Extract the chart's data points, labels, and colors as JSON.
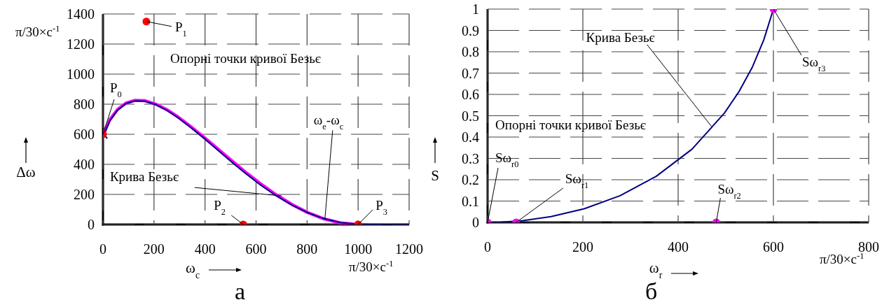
{
  "chart_data": [
    {
      "type": "line",
      "xlabel": "ω$_{c}$",
      "ylabel": "Δω",
      "xlim": [
        0,
        1200
      ],
      "xticks": [
        0,
        200,
        400,
        600,
        800,
        1000,
        1200
      ],
      "ylim": [
        0,
        1400
      ],
      "yticks": [
        0,
        200,
        400,
        600,
        800,
        1000,
        1200,
        1400
      ],
      "grid": true,
      "series": [
        {
          "type": "line",
          "color": "#ff00ff",
          "x": [
            0,
            27,
            57,
            90,
            126,
            165,
            206,
            250,
            296,
            344,
            395,
            448,
            503,
            559,
            618,
            678,
            740,
            803,
            867,
            933,
            1000
          ],
          "values": [
            600,
            697,
            765,
            807,
            826,
            823,
            801,
            764,
            713,
            651,
            581,
            506,
            427,
            348,
            271,
            199,
            134,
            79,
            37,
            10,
            0
          ]
        },
        {
          "type": "line",
          "color": "#000080",
          "x": [
            15,
            5,
            27,
            57,
            90,
            126,
            165,
            206,
            250,
            296,
            344,
            395,
            448,
            503,
            559,
            618,
            678,
            740,
            803,
            867,
            933,
            1000,
            1050,
            1200
          ],
          "values": [
            575,
            600,
            690,
            760,
            805,
            822,
            820,
            798,
            760,
            708,
            645,
            575,
            498,
            418,
            340,
            262,
            192,
            130,
            78,
            38,
            12,
            2,
            0,
            0
          ]
        },
        {
          "type": "scatter",
          "color": "#ff0000",
          "marker": "circle",
          "x": [
            0,
            170,
            550,
            1000
          ],
          "values": [
            600,
            1350,
            0,
            0
          ]
        }
      ],
      "annotations": [
        {
          "text": "P$_{0}$",
          "x": 0,
          "y": 600
        },
        {
          "text": "P$_{1}$",
          "x": 170,
          "y": 1350
        },
        {
          "text": "P$_{2}$",
          "x": 550,
          "y": 0
        },
        {
          "text": "P$_{3}$",
          "x": 1000,
          "y": 0
        },
        {
          "text": "ω$_{e}$-ω$_{c}$",
          "x": 870,
          "y": 40
        },
        {
          "text": "Крива Безьє",
          "x": 700,
          "y": 190
        },
        "Опорні точки кривої Безьє",
        "π/30×c$^{-1}$",
        "π/30×c$^{-1}$",
        "а"
      ]
    },
    {
      "type": "line",
      "xlabel": "ω$_{r}$",
      "ylabel": "S",
      "xlim": [
        0,
        800
      ],
      "xticks": [
        0,
        200,
        400,
        600,
        800
      ],
      "ylim": [
        0,
        1
      ],
      "yticks": [
        0,
        0.1,
        0.2,
        0.3,
        0.4,
        0.5,
        0.6,
        0.7,
        0.8,
        0.9,
        1
      ],
      "grid": true,
      "series": [
        {
          "type": "line",
          "color": "#000080",
          "x": [
            0,
            28,
            74,
            133,
            203,
            278,
            354,
            429,
            497,
            528,
            556,
            580,
            600
          ],
          "values": [
            0,
            0.001,
            0.008,
            0.027,
            0.064,
            0.125,
            0.216,
            0.343,
            0.512,
            0.614,
            0.729,
            0.857,
            1
          ]
        },
        {
          "type": "scatter",
          "color": "#ff00ff",
          "marker": "circle",
          "x": [
            0,
            60,
            480,
            600
          ],
          "values": [
            0,
            0,
            0,
            1
          ]
        }
      ],
      "annotations": [
        {
          "text": "Sω$_{r0}$",
          "x": 0,
          "y": 0
        },
        {
          "text": "Sω$_{r1}$",
          "x": 60,
          "y": 0
        },
        {
          "text": "Sω$_{r2}$",
          "x": 480,
          "y": 0
        },
        {
          "text": "Sω$_{r3}$",
          "x": 600,
          "y": 1
        },
        {
          "text": "Крива Безьє",
          "x": 470,
          "y": 0.45
        },
        "Опорні точки кривої Безьє",
        "π/30×c$^{-1}$",
        "б"
      ]
    }
  ]
}
